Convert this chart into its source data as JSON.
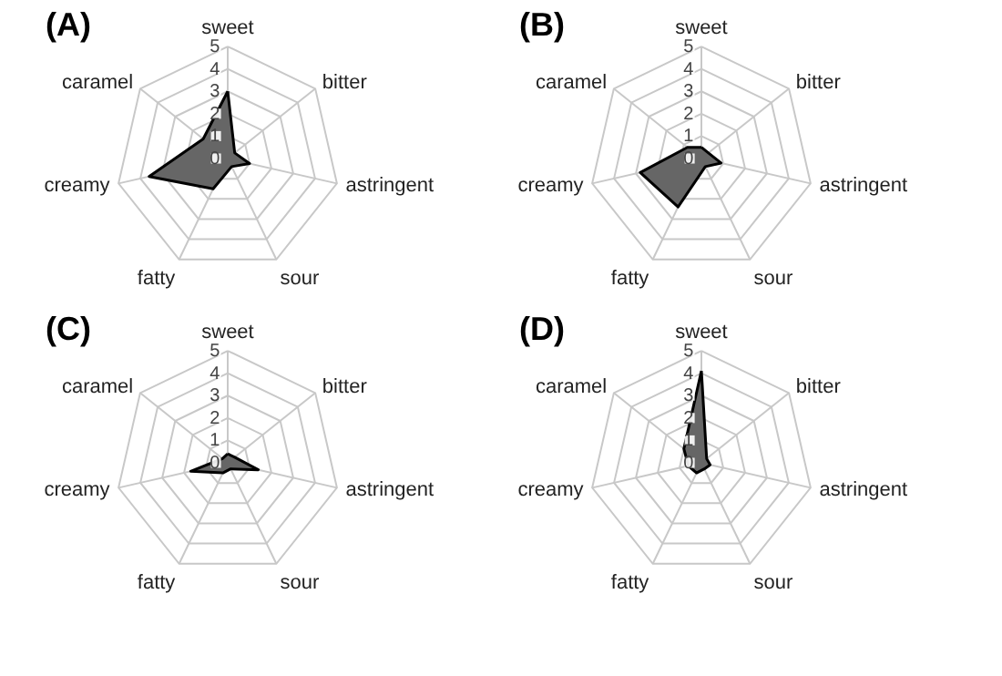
{
  "chart_data": [
    {
      "type": "radar",
      "title": "(A)",
      "categories": [
        "sweet",
        "bitter",
        "astringent",
        "sour",
        "fatty",
        "creamy",
        "caramel"
      ],
      "ylim": [
        0,
        5
      ],
      "yticks": [
        0,
        1,
        2,
        3,
        4,
        5
      ],
      "grid": true,
      "series": [
        {
          "color": "#666666",
          "values": [
            3.0,
            0.4,
            1.0,
            0.4,
            1.5,
            3.6,
            1.4
          ]
        }
      ]
    },
    {
      "type": "radar",
      "title": "(B)",
      "categories": [
        "sweet",
        "bitter",
        "astringent",
        "sour",
        "fatty",
        "creamy",
        "caramel"
      ],
      "ylim": [
        0,
        5
      ],
      "yticks": [
        0,
        1,
        2,
        3,
        4,
        5
      ],
      "grid": true,
      "series": [
        {
          "color": "#666666",
          "values": [
            0.5,
            0.4,
            0.9,
            0.4,
            2.4,
            2.8,
            0.8
          ]
        }
      ]
    },
    {
      "type": "radar",
      "title": "(C)",
      "categories": [
        "sweet",
        "bitter",
        "astringent",
        "sour",
        "fatty",
        "creamy",
        "caramel"
      ],
      "ylim": [
        0,
        5
      ],
      "yticks": [
        0,
        1,
        2,
        3,
        4,
        5
      ],
      "grid": true,
      "series": [
        {
          "color": "#666666",
          "values": [
            0.4,
            0.4,
            1.4,
            0.3,
            0.5,
            1.7,
            0.3
          ]
        }
      ]
    },
    {
      "type": "radar",
      "title": "(D)",
      "categories": [
        "sweet",
        "bitter",
        "astringent",
        "sour",
        "fatty",
        "creamy",
        "caramel"
      ],
      "ylim": [
        0,
        5
      ],
      "yticks": [
        0,
        1,
        2,
        3,
        4,
        5
      ],
      "grid": true,
      "series": [
        {
          "color": "#666666",
          "values": [
            4.1,
            0.3,
            0.4,
            0.3,
            0.5,
            0.6,
            1.0
          ]
        }
      ]
    }
  ]
}
